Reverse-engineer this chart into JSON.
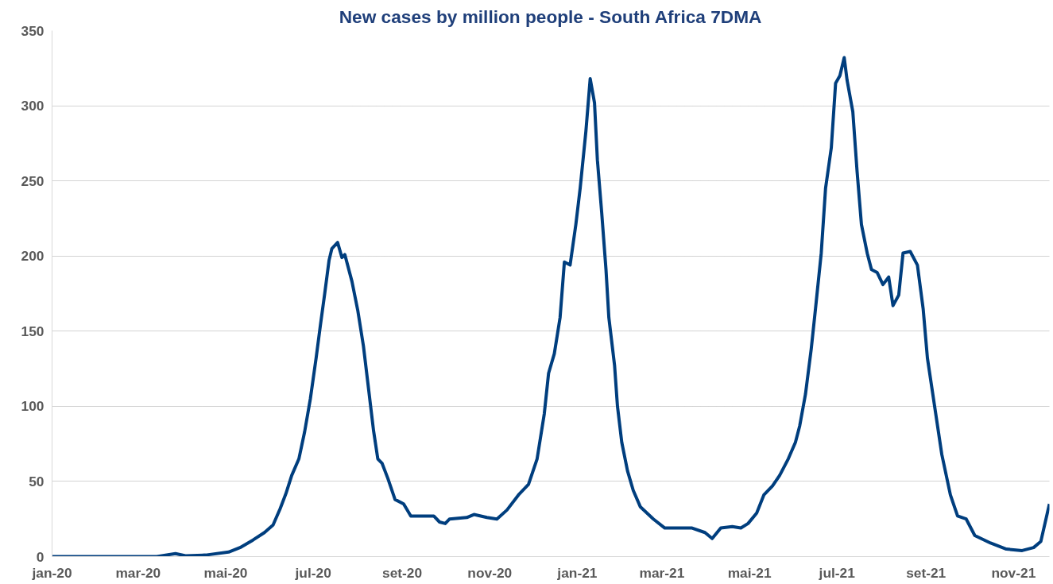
{
  "chart_data": {
    "type": "line",
    "title": "New cases by million people - South Africa 7DMA",
    "x": [
      "2020-01-01",
      "2020-03-14",
      "2020-03-27",
      "2020-04-03",
      "2020-04-17",
      "2020-05-03",
      "2020-05-11",
      "2020-05-20",
      "2020-05-28",
      "2020-06-03",
      "2020-06-08",
      "2020-06-12",
      "2020-06-16",
      "2020-06-21",
      "2020-06-25",
      "2020-06-29",
      "2020-07-03",
      "2020-07-06",
      "2020-07-09",
      "2020-07-12",
      "2020-07-14",
      "2020-07-18",
      "2020-07-21",
      "2020-07-23",
      "2020-07-28",
      "2020-08-01",
      "2020-08-05",
      "2020-08-08",
      "2020-08-12",
      "2020-08-15",
      "2020-08-18",
      "2020-08-22",
      "2020-08-27",
      "2020-09-02",
      "2020-09-07",
      "2020-09-16",
      "2020-09-23",
      "2020-09-27",
      "2020-10-01",
      "2020-10-04",
      "2020-10-16",
      "2020-10-21",
      "2020-10-30",
      "2020-11-06",
      "2020-11-13",
      "2020-11-21",
      "2020-11-28",
      "2020-12-04",
      "2020-12-09",
      "2020-12-12",
      "2020-12-16",
      "2020-12-20",
      "2020-12-23",
      "2020-12-27",
      "2020-12-31",
      "2021-01-03",
      "2021-01-07",
      "2021-01-10",
      "2021-01-13",
      "2021-01-15",
      "2021-01-18",
      "2021-01-21",
      "2021-01-23",
      "2021-01-27",
      "2021-01-29",
      "2021-02-01",
      "2021-02-05",
      "2021-02-09",
      "2021-02-14",
      "2021-02-23",
      "2021-03-03",
      "2021-03-14",
      "2021-03-22",
      "2021-03-31",
      "2021-04-05",
      "2021-04-11",
      "2021-04-19",
      "2021-04-25",
      "2021-04-30",
      "2021-05-06",
      "2021-05-11",
      "2021-05-17",
      "2021-05-22",
      "2021-05-28",
      "2021-06-02",
      "2021-06-05",
      "2021-06-09",
      "2021-06-13",
      "2021-06-16",
      "2021-06-20",
      "2021-06-23",
      "2021-06-27",
      "2021-06-30",
      "2021-07-03",
      "2021-07-06",
      "2021-07-08",
      "2021-07-12",
      "2021-07-15",
      "2021-07-18",
      "2021-07-22",
      "2021-07-25",
      "2021-07-29",
      "2021-08-02",
      "2021-08-06",
      "2021-08-09",
      "2021-08-13",
      "2021-08-16",
      "2021-08-21",
      "2021-08-26",
      "2021-08-30",
      "2021-09-02",
      "2021-09-07",
      "2021-09-12",
      "2021-09-18",
      "2021-09-23",
      "2021-09-29",
      "2021-10-05",
      "2021-10-16",
      "2021-10-27",
      "2021-11-07",
      "2021-11-15",
      "2021-11-20",
      "2021-11-26"
    ],
    "series": [
      {
        "color": "#003e7e",
        "values": [
          0,
          0,
          2,
          0.5,
          1,
          3,
          6,
          11,
          16,
          21,
          32,
          42,
          54,
          65,
          83,
          105,
          132,
          154,
          175,
          197,
          205,
          209,
          199,
          201,
          183,
          164,
          140,
          116,
          84,
          65,
          62,
          52,
          38,
          35,
          27,
          27,
          27,
          23,
          22,
          25,
          26,
          28,
          26,
          25,
          31,
          41,
          48,
          65,
          95,
          122,
          135,
          159,
          196,
          194,
          221,
          245,
          283,
          318,
          302,
          264,
          229,
          191,
          159,
          127,
          100,
          76,
          57,
          44,
          33,
          25,
          19,
          19,
          19,
          16,
          12,
          19,
          20,
          19,
          22,
          29,
          41,
          47,
          54,
          65,
          76,
          87,
          108,
          138,
          165,
          202,
          245,
          272,
          315,
          320,
          332,
          317,
          296,
          256,
          221,
          202,
          191,
          189,
          181,
          186,
          167,
          174,
          202,
          203,
          194,
          165,
          132,
          100,
          68,
          41,
          27,
          25,
          14,
          9,
          5,
          4,
          6,
          10,
          35
        ]
      }
    ],
    "xlim": [
      "2020-01-01",
      "2021-11-26"
    ],
    "xticks": [
      {
        "value": "2020-01-01",
        "label": "jan-20"
      },
      {
        "value": "2020-03-01",
        "label": "mar-20"
      },
      {
        "value": "2020-05-01",
        "label": "mai-20"
      },
      {
        "value": "2020-07-01",
        "label": "jul-20"
      },
      {
        "value": "2020-09-01",
        "label": "set-20"
      },
      {
        "value": "2020-11-01",
        "label": "nov-20"
      },
      {
        "value": "2021-01-01",
        "label": "jan-21"
      },
      {
        "value": "2021-03-01",
        "label": "mar-21"
      },
      {
        "value": "2021-05-01",
        "label": "mai-21"
      },
      {
        "value": "2021-07-01",
        "label": "jul-21"
      },
      {
        "value": "2021-09-01",
        "label": "set-21"
      },
      {
        "value": "2021-11-01",
        "label": "nov-21"
      }
    ],
    "ylim": [
      0,
      350
    ],
    "yticks": [
      0,
      50,
      100,
      150,
      200,
      250,
      300,
      350
    ],
    "grid": "y",
    "line_style": "solid"
  }
}
